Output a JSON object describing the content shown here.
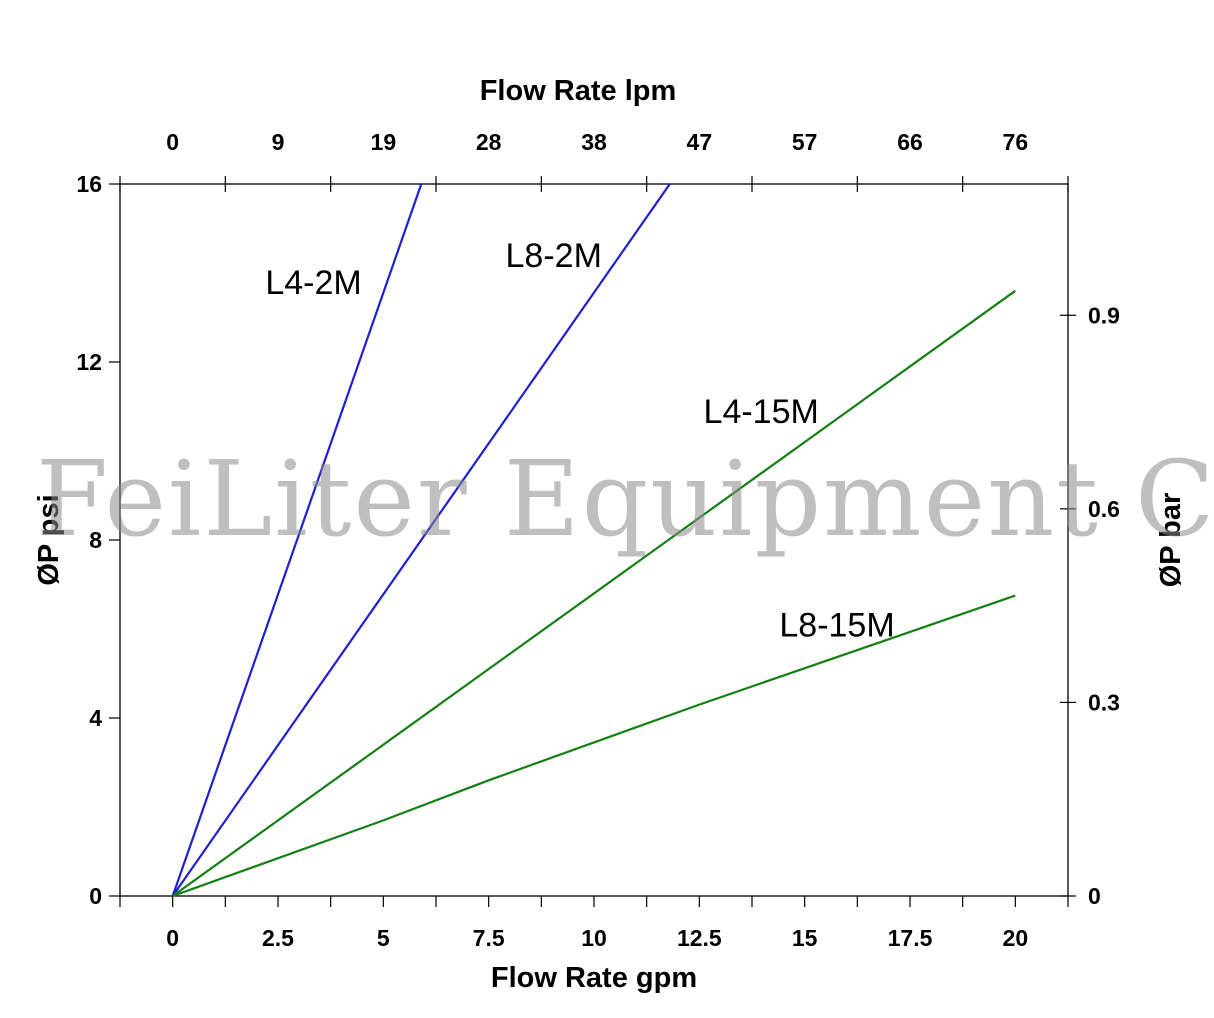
{
  "chart_data": {
    "type": "line",
    "xlabel": "Flow Rate gpm",
    "ylabel": "ØP psi",
    "x2label": "Flow Rate lpm",
    "y2label": "ØP bar",
    "xlim": [
      -1.25,
      21.25
    ],
    "ylim": [
      0,
      16
    ],
    "x_ticks": [
      0,
      2.5,
      5,
      7.5,
      10,
      12.5,
      15,
      17.5,
      20
    ],
    "x_tick_labels": [
      "0",
      "2.5",
      "5",
      "7.5",
      "10",
      "12.5",
      "15",
      "17.5",
      "20"
    ],
    "y_ticks": [
      0,
      4,
      8,
      12,
      16
    ],
    "y_tick_labels": [
      "0",
      "4",
      "8",
      "12",
      "16"
    ],
    "x2_ticks_gpm": [
      0,
      2.5,
      5,
      7.5,
      10,
      12.5,
      15,
      17.5,
      20
    ],
    "x2_tick_labels": [
      "0",
      "9",
      "19",
      "28",
      "38",
      "47",
      "57",
      "66",
      "76"
    ],
    "y2_ticks_psi": [
      0,
      4.35,
      8.7,
      13.05
    ],
    "y2_tick_labels": [
      "0",
      "0.3",
      "0.6",
      "0.9"
    ],
    "series": [
      {
        "name": "L4-2M",
        "color": "#1f1fd6",
        "x": [
          0,
          5.9
        ],
        "y": [
          0,
          16
        ]
      },
      {
        "name": "L8-2M",
        "color": "#1f1fd6",
        "x": [
          0,
          11.8
        ],
        "y": [
          0,
          16
        ]
      },
      {
        "name": "L4-15M",
        "color": "#138013",
        "x": [
          0,
          20
        ],
        "y": [
          0,
          13.6
        ]
      },
      {
        "name": "L8-15M",
        "color": "#138013",
        "x": [
          0,
          5,
          7.5,
          12.5,
          20
        ],
        "y": [
          0,
          1.7,
          2.6,
          4.3,
          6.75
        ]
      }
    ],
    "series_labels": [
      {
        "text": "L4-2M",
        "x": 2.2,
        "y": 13.8
      },
      {
        "text": "L8-2M",
        "x": 7.9,
        "y": 14.4
      },
      {
        "text": "L4-15M",
        "x": 12.6,
        "y": 10.9
      },
      {
        "text": "L8-15M",
        "x": 14.4,
        "y": 6.1
      }
    ]
  },
  "watermark": "FeiLiter Equipment C"
}
